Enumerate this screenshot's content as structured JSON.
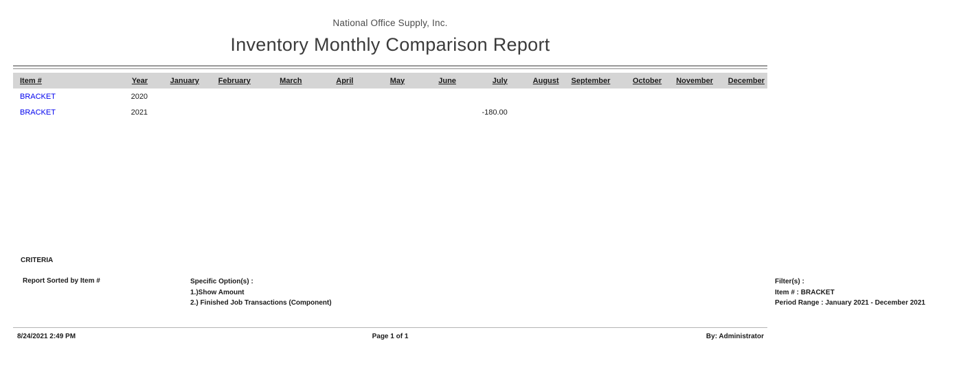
{
  "report": {
    "company": "National Office Supply, Inc.",
    "title": "Inventory Monthly Comparison Report"
  },
  "table": {
    "columns": [
      "Item #",
      "Year",
      "January",
      "February",
      "March",
      "April",
      "May",
      "June",
      "July",
      "August",
      "September",
      "October",
      "November",
      "December"
    ],
    "rows": [
      {
        "item": "BRACKET",
        "year": "2020",
        "values": [
          "",
          "",
          "",
          "",
          "",
          "",
          "",
          "",
          "",
          "",
          "",
          ""
        ]
      },
      {
        "item": "BRACKET",
        "year": "2021",
        "values": [
          "",
          "",
          "",
          "",
          "",
          "",
          "-180.00",
          "",
          "",
          "",
          "",
          ""
        ]
      }
    ]
  },
  "criteria": {
    "heading": "CRITERIA",
    "sorted_by": "Report Sorted by Item #",
    "options_heading": "Specific Option(s) :",
    "option_1": "1.)Show Amount",
    "option_2": "2.) Finished Job Transactions (Component)",
    "filters_heading": "Filter(s) :",
    "filter_item": "Item # : BRACKET",
    "filter_period": "Period Range : January 2021 - December 2021"
  },
  "footer": {
    "datetime": "8/24/2021 2:49 PM",
    "page": "Page 1 of 1",
    "by": "By: Administrator"
  },
  "colors": {
    "link_blue": "#0000ee",
    "header_band_gray": "#d5d5d5"
  }
}
